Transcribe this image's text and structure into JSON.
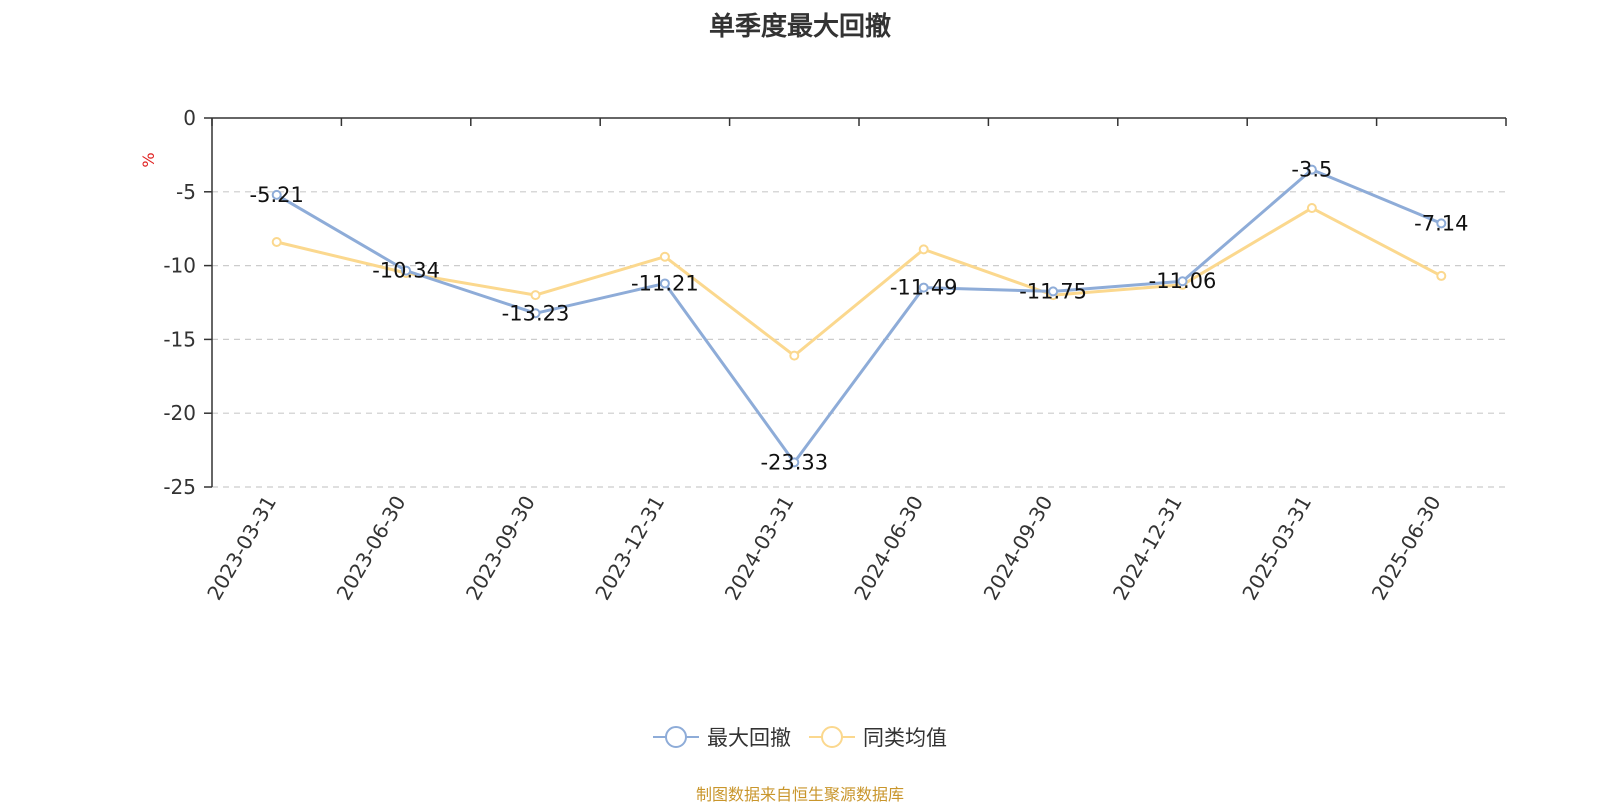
{
  "chart_data": {
    "type": "line",
    "title": "单季度最大回撤",
    "ylabel": "%",
    "categories": [
      "2023-03-31",
      "2023-06-30",
      "2023-09-30",
      "2023-12-31",
      "2024-03-31",
      "2024-06-30",
      "2024-09-30",
      "2024-12-31",
      "2025-03-31",
      "2025-06-30"
    ],
    "ylim": [
      -25,
      0
    ],
    "yticks": [
      0,
      -5,
      -10,
      -15,
      -20,
      -25
    ],
    "grid": true,
    "legend_position": "bottom",
    "series": [
      {
        "name": "最大回撤",
        "color": "#8eacd8",
        "values": [
          -5.21,
          -10.34,
          -13.23,
          -11.21,
          -23.33,
          -11.49,
          -11.75,
          -11.06,
          -3.5,
          -7.14
        ],
        "show_labels": true
      },
      {
        "name": "同类均值",
        "color": "#fbd88e",
        "values": [
          -8.4,
          -10.5,
          -12.0,
          -9.4,
          -16.1,
          -8.9,
          -12.0,
          -11.3,
          -6.1,
          -10.7
        ],
        "show_labels": false
      }
    ]
  },
  "source_note": "制图数据来自恒生聚源数据库"
}
